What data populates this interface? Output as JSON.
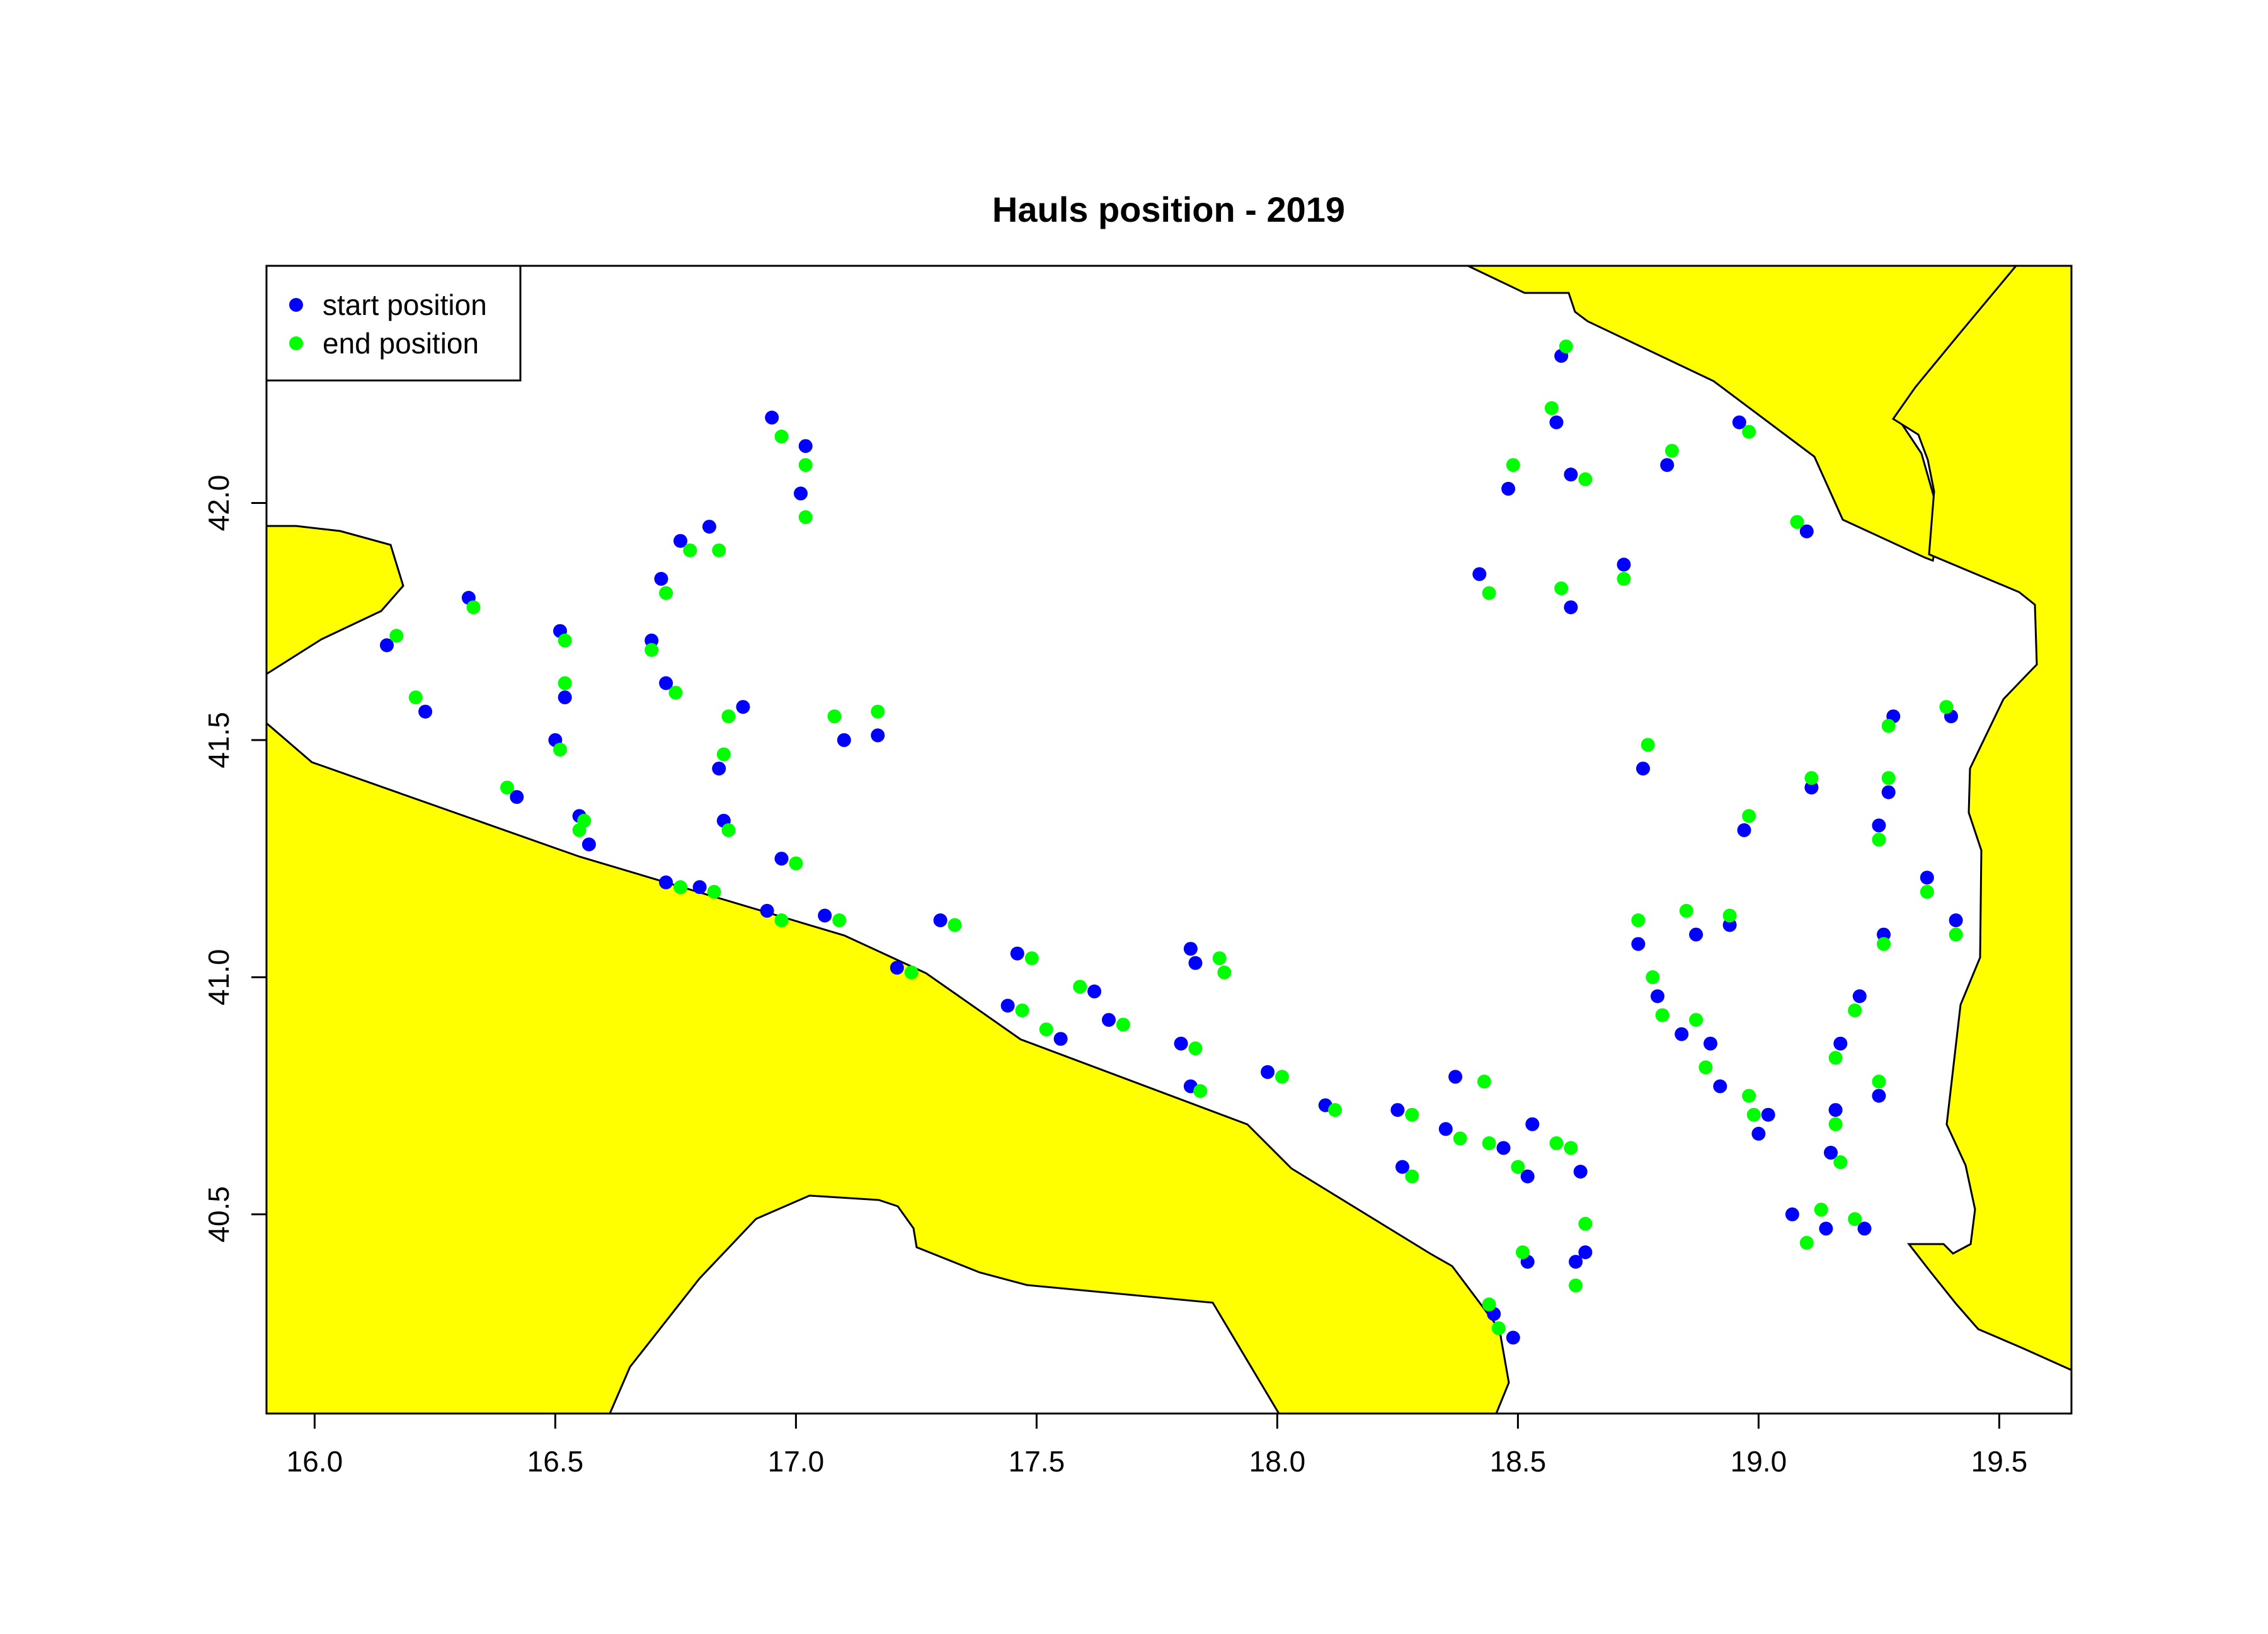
{
  "chart_data": {
    "type": "scatter",
    "title": "Hauls position -  2019",
    "xlabel": "",
    "ylabel": "",
    "xlim": [
      15.9,
      19.65
    ],
    "ylim": [
      40.08,
      42.5
    ],
    "x_ticks": [
      "16.0",
      "16.5",
      "17.0",
      "17.5",
      "18.0",
      "18.5",
      "19.0",
      "19.5"
    ],
    "y_ticks": [
      "40.5",
      "41.0",
      "41.5",
      "42.0"
    ],
    "grid": false,
    "legend_position": "top-left",
    "land_color": "#ffff00",
    "series": [
      {
        "name": "start position",
        "color": "#0000ff",
        "points": [
          [
            16.15,
            41.7
          ],
          [
            16.23,
            41.56
          ],
          [
            16.32,
            41.8
          ],
          [
            16.42,
            41.38
          ],
          [
            16.51,
            41.73
          ],
          [
            16.5,
            41.5
          ],
          [
            16.52,
            41.59
          ],
          [
            16.55,
            41.34
          ],
          [
            16.57,
            41.28
          ],
          [
            16.7,
            41.71
          ],
          [
            16.72,
            41.84
          ],
          [
            16.73,
            41.62
          ],
          [
            16.76,
            41.92
          ],
          [
            16.82,
            41.95
          ],
          [
            16.84,
            41.44
          ],
          [
            16.85,
            41.33
          ],
          [
            16.89,
            41.57
          ],
          [
            16.73,
            41.2
          ],
          [
            16.8,
            41.19
          ],
          [
            16.94,
            41.14
          ],
          [
            16.95,
            42.18
          ],
          [
            16.97,
            41.25
          ],
          [
            17.01,
            42.02
          ],
          [
            17.02,
            42.12
          ],
          [
            17.06,
            41.13
          ],
          [
            17.1,
            41.5
          ],
          [
            17.17,
            41.51
          ],
          [
            17.21,
            41.02
          ],
          [
            17.3,
            41.12
          ],
          [
            17.44,
            40.94
          ],
          [
            17.46,
            41.05
          ],
          [
            17.55,
            40.87
          ],
          [
            17.62,
            40.97
          ],
          [
            17.65,
            40.91
          ],
          [
            17.8,
            40.86
          ],
          [
            17.82,
            41.06
          ],
          [
            17.83,
            41.03
          ],
          [
            17.82,
            40.77
          ],
          [
            17.98,
            40.8
          ],
          [
            18.1,
            40.73
          ],
          [
            18.25,
            40.72
          ],
          [
            18.26,
            40.6
          ],
          [
            18.35,
            40.68
          ],
          [
            18.37,
            40.79
          ],
          [
            18.47,
            40.64
          ],
          [
            18.52,
            40.58
          ],
          [
            18.53,
            40.69
          ],
          [
            18.52,
            40.4
          ],
          [
            18.45,
            40.29
          ],
          [
            18.49,
            40.24
          ],
          [
            18.42,
            41.85
          ],
          [
            18.48,
            42.03
          ],
          [
            18.58,
            42.17
          ],
          [
            18.59,
            42.31
          ],
          [
            18.61,
            42.06
          ],
          [
            18.61,
            41.78
          ],
          [
            18.63,
            40.59
          ],
          [
            18.62,
            40.4
          ],
          [
            18.64,
            40.42
          ],
          [
            18.72,
            41.87
          ],
          [
            18.75,
            41.07
          ],
          [
            18.76,
            41.44
          ],
          [
            18.79,
            40.96
          ],
          [
            18.81,
            42.08
          ],
          [
            18.84,
            40.88
          ],
          [
            18.87,
            41.09
          ],
          [
            18.9,
            40.86
          ],
          [
            18.92,
            40.77
          ],
          [
            18.94,
            41.11
          ],
          [
            18.96,
            42.17
          ],
          [
            18.97,
            41.31
          ],
          [
            19.0,
            40.67
          ],
          [
            19.02,
            40.71
          ],
          [
            19.07,
            40.5
          ],
          [
            19.1,
            41.94
          ],
          [
            19.11,
            41.4
          ],
          [
            19.14,
            40.47
          ],
          [
            19.15,
            40.63
          ],
          [
            19.16,
            40.72
          ],
          [
            19.17,
            40.86
          ],
          [
            19.21,
            40.96
          ],
          [
            19.22,
            40.47
          ],
          [
            19.25,
            40.75
          ],
          [
            19.25,
            41.32
          ],
          [
            19.26,
            41.09
          ],
          [
            19.27,
            41.39
          ],
          [
            19.28,
            41.55
          ],
          [
            19.35,
            41.21
          ],
          [
            19.4,
            41.55
          ],
          [
            19.41,
            41.12
          ]
        ]
      },
      {
        "name": "end position",
        "color": "#00ff00",
        "points": [
          [
            16.17,
            41.72
          ],
          [
            16.21,
            41.59
          ],
          [
            16.33,
            41.78
          ],
          [
            16.4,
            41.4
          ],
          [
            16.52,
            41.71
          ],
          [
            16.51,
            41.48
          ],
          [
            16.52,
            41.62
          ],
          [
            16.55,
            41.31
          ],
          [
            16.56,
            41.33
          ],
          [
            16.7,
            41.69
          ],
          [
            16.73,
            41.81
          ],
          [
            16.75,
            41.6
          ],
          [
            16.78,
            41.9
          ],
          [
            16.84,
            41.9
          ],
          [
            16.85,
            41.47
          ],
          [
            16.86,
            41.31
          ],
          [
            16.86,
            41.55
          ],
          [
            16.76,
            41.19
          ],
          [
            16.83,
            41.18
          ],
          [
            16.97,
            41.12
          ],
          [
            16.97,
            42.14
          ],
          [
            17.0,
            41.24
          ],
          [
            17.02,
            41.97
          ],
          [
            17.02,
            42.08
          ],
          [
            17.09,
            41.12
          ],
          [
            17.08,
            41.55
          ],
          [
            17.17,
            41.56
          ],
          [
            17.24,
            41.01
          ],
          [
            17.33,
            41.11
          ],
          [
            17.47,
            40.93
          ],
          [
            17.49,
            41.04
          ],
          [
            17.52,
            40.89
          ],
          [
            17.59,
            40.98
          ],
          [
            17.68,
            40.9
          ],
          [
            17.83,
            40.85
          ],
          [
            17.88,
            41.04
          ],
          [
            17.89,
            41.01
          ],
          [
            17.84,
            40.76
          ],
          [
            18.01,
            40.79
          ],
          [
            18.12,
            40.72
          ],
          [
            18.28,
            40.71
          ],
          [
            18.28,
            40.58
          ],
          [
            18.38,
            40.66
          ],
          [
            18.43,
            40.78
          ],
          [
            18.44,
            40.65
          ],
          [
            18.5,
            40.6
          ],
          [
            18.58,
            40.65
          ],
          [
            18.51,
            40.42
          ],
          [
            18.44,
            40.31
          ],
          [
            18.46,
            40.26
          ],
          [
            18.44,
            41.81
          ],
          [
            18.49,
            42.08
          ],
          [
            18.57,
            42.2
          ],
          [
            18.6,
            42.33
          ],
          [
            18.64,
            42.05
          ],
          [
            18.59,
            41.82
          ],
          [
            18.61,
            40.64
          ],
          [
            18.62,
            40.35
          ],
          [
            18.64,
            40.48
          ],
          [
            18.72,
            41.84
          ],
          [
            18.75,
            41.12
          ],
          [
            18.77,
            41.49
          ],
          [
            18.78,
            41.0
          ],
          [
            18.82,
            42.11
          ],
          [
            18.8,
            40.92
          ],
          [
            18.85,
            41.14
          ],
          [
            18.87,
            40.91
          ],
          [
            18.89,
            40.81
          ],
          [
            18.94,
            41.13
          ],
          [
            18.98,
            42.15
          ],
          [
            18.98,
            41.34
          ],
          [
            18.99,
            40.71
          ],
          [
            18.98,
            40.75
          ],
          [
            19.1,
            40.44
          ],
          [
            19.08,
            41.96
          ],
          [
            19.11,
            41.42
          ],
          [
            19.13,
            40.51
          ],
          [
            19.17,
            40.61
          ],
          [
            19.16,
            40.69
          ],
          [
            19.16,
            40.83
          ],
          [
            19.2,
            40.93
          ],
          [
            19.2,
            40.49
          ],
          [
            19.25,
            40.78
          ],
          [
            19.25,
            41.29
          ],
          [
            19.26,
            41.07
          ],
          [
            19.27,
            41.42
          ],
          [
            19.27,
            41.53
          ],
          [
            19.35,
            41.18
          ],
          [
            19.39,
            41.57
          ],
          [
            19.41,
            41.09
          ]
        ]
      }
    ]
  }
}
